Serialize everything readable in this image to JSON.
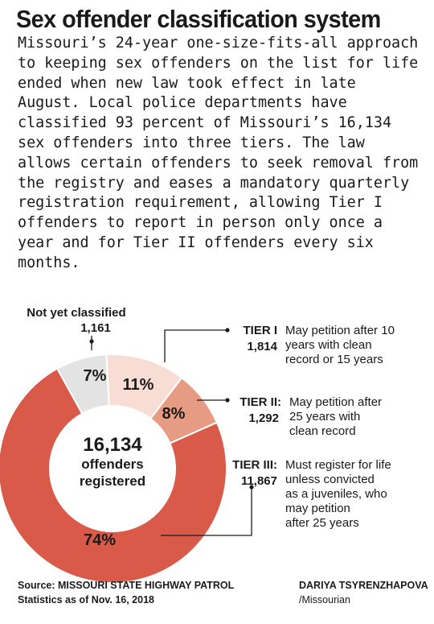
{
  "header": {
    "title": "Sex offender classification system",
    "intro": "Missouri’s 24-year one-size-fits-all approach to keeping sex offenders on the list for life ended when new law took effect in late August. Local police departments have classified 93 percent of Missouri’s 16,134 sex offenders into three tiers. The law allows certain offenders to seek removal from the registry and eases a mandatory quarterly registration requirement, allowing Tier I offenders to report in person only once a year and for Tier II offenders every six months."
  },
  "center": {
    "total": "16,134",
    "line1": "offenders",
    "line2": "registered"
  },
  "callouts": {
    "not_classified": {
      "label": "Not yet classified",
      "count": "1,161"
    },
    "tier1": {
      "label": "TIER I",
      "count": "1,814",
      "desc": [
        "May petition after 10",
        "years with clean",
        "record or 15 years"
      ]
    },
    "tier2": {
      "label": "TIER II:",
      "count": "1,292",
      "desc": [
        "May petition after",
        "25 years with",
        "clean record"
      ]
    },
    "tier3": {
      "label": "TIER III:",
      "count": "11,867",
      "desc": [
        "Must register for life",
        "unless convicted",
        "as a juveniles, who",
        "may petition",
        "after 25 years"
      ]
    }
  },
  "chart_data": {
    "type": "pie",
    "variant": "donut",
    "categories": [
      "Not yet classified",
      "TIER I",
      "TIER II",
      "TIER III"
    ],
    "values": [
      1161,
      1814,
      1292,
      11867
    ],
    "percent_labels": [
      "7%",
      "11%",
      "8%",
      "74%"
    ],
    "colors": [
      "#e3e3e3",
      "#f8ddd4",
      "#e59c82",
      "#d95a48"
    ]
  },
  "footer": {
    "source": "Source: MISSOURI STATE HIGHWAY PATROL",
    "stats_date": "Statistics as of Nov. 16, 2018",
    "author": "DARIYA TSYRENZHAPOVA",
    "outlet": "/Missourian"
  }
}
